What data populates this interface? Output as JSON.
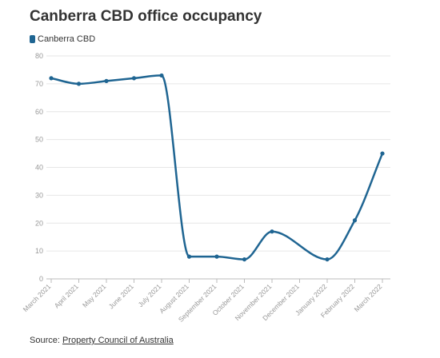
{
  "chart_data": {
    "type": "line",
    "title": "Canberra CBD office occupancy",
    "categories": [
      "March 2021",
      "April 2021",
      "May 2021",
      "June 2021",
      "July 2021",
      "August 2021",
      "September 2021",
      "October 2021",
      "November 2021",
      "December 2021",
      "January 2022",
      "February 2022",
      "March 2022"
    ],
    "series": [
      {
        "name": "Canberra CBD",
        "values": [
          72,
          70,
          71,
          72,
          73,
          8,
          8,
          7,
          17,
          null,
          7,
          21,
          45
        ],
        "color": "#1f6592"
      }
    ],
    "yticks": [
      0,
      10,
      20,
      30,
      40,
      50,
      60,
      70,
      80
    ],
    "ylim": [
      0,
      80
    ],
    "grid": "horizontal",
    "legend_position": "top-left",
    "source_prefix": "Source: ",
    "source_link": "Property Council of Australia"
  }
}
